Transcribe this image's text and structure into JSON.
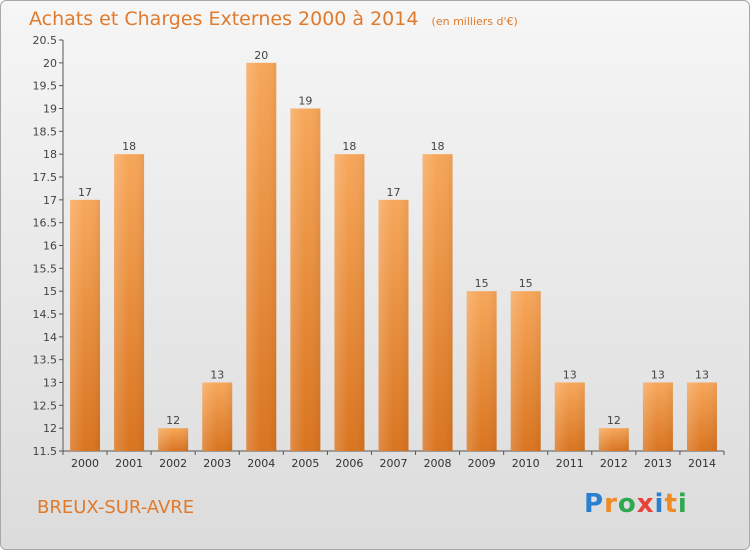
{
  "chart_title": "Achats et Charges Externes 2000 à 2014",
  "unit_label": "(en milliers d'€)",
  "commune": "BREUX-SUR-AVRE",
  "logo": {
    "text": "Proxiti",
    "letters": [
      "P",
      "r",
      "o",
      "x",
      "i",
      "t",
      "i"
    ],
    "colors": [
      "#2a7fd0",
      "#f08a24",
      "#2fa84f",
      "#e8423b",
      "#2a7fd0",
      "#f08a24",
      "#2fa84f"
    ]
  },
  "colors": {
    "accent": "#e07a2c",
    "bar_top": "#f7a75a",
    "bar_bottom": "#d9741f",
    "axis": "#555555",
    "grid": "#c8c8c8"
  },
  "chart_data": {
    "type": "bar",
    "title": "Achats et Charges Externes 2000 à 2014",
    "xlabel": "",
    "ylabel": "en milliers d'€",
    "categories": [
      "2000",
      "2001",
      "2002",
      "2003",
      "2004",
      "2005",
      "2006",
      "2007",
      "2008",
      "2009",
      "2010",
      "2011",
      "2012",
      "2013",
      "2014"
    ],
    "values": [
      17,
      18,
      12,
      13,
      20,
      19,
      18,
      17,
      18,
      15,
      15,
      13,
      12,
      13,
      13
    ],
    "data_labels": [
      "17",
      "18",
      "12",
      "13",
      "20",
      "19",
      "18",
      "17",
      "18",
      "15",
      "15",
      "13",
      "12",
      "13",
      "13"
    ],
    "ylim": [
      11.5,
      20.5
    ],
    "yticks": [
      11.5,
      12,
      12.5,
      13,
      13.5,
      14,
      14.5,
      15,
      15.5,
      16,
      16.5,
      17,
      17.5,
      18,
      18.5,
      19,
      19.5,
      20,
      20.5
    ],
    "ytick_labels": [
      "11.5",
      "12",
      "12.5",
      "13",
      "13.5",
      "14",
      "14.5",
      "15",
      "15.5",
      "16",
      "16.5",
      "17",
      "17.5",
      "18",
      "18.5",
      "19",
      "19.5",
      "20",
      "20.5"
    ],
    "grid": false,
    "legend": "none"
  }
}
